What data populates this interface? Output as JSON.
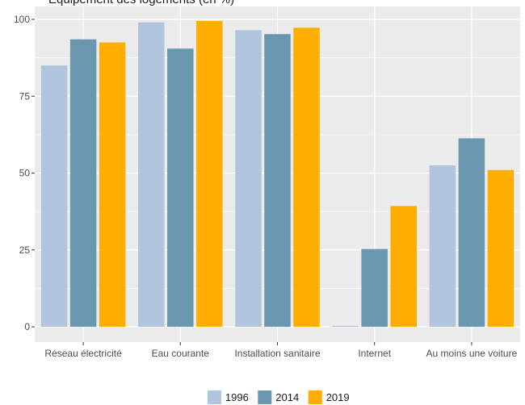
{
  "chart_data": {
    "type": "bar",
    "title": "Équipement des logements (en %)",
    "xlabel": "",
    "ylabel": "",
    "categories": [
      "Réseau électricité",
      "Eau courante",
      "Installation sanitaire",
      "Internet",
      "Au moins une voiture"
    ],
    "series": [
      {
        "name": "1996",
        "color": "#b0c4de",
        "values": [
          85,
          99,
          96.5,
          0.3,
          52.5
        ]
      },
      {
        "name": "2014",
        "color": "#6b96b0",
        "values": [
          93.5,
          90.5,
          95.2,
          25.3,
          61.3
        ]
      },
      {
        "name": "2019",
        "color": "#ffae00",
        "values": [
          92.5,
          99.5,
          97.3,
          39.3,
          51
        ]
      }
    ],
    "ylim": [
      -4.96,
      104.2
    ],
    "yticks": [
      0,
      25,
      50,
      75,
      100
    ],
    "ytick_labels": [
      "0",
      "25",
      "50",
      "75",
      "100"
    ],
    "grid": true,
    "legend_position": "bottom",
    "panel_background": "#ebebeb"
  }
}
